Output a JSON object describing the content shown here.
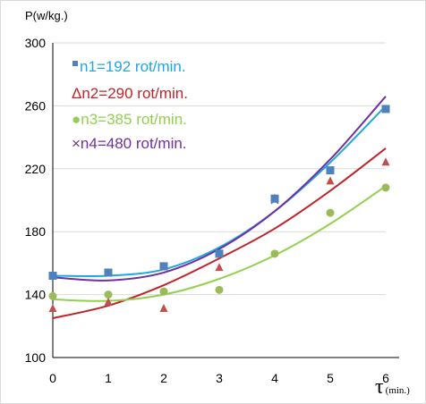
{
  "chart_data": {
    "type": "scatter",
    "ylabel": "P(w/kg.)",
    "xlabel_main": "τ",
    "xlabel_sub": "(min.)",
    "xlim": [
      0,
      6
    ],
    "ylim": [
      100,
      300
    ],
    "xticks": [
      0,
      1,
      2,
      3,
      4,
      5,
      6
    ],
    "yticks": [
      100,
      140,
      180,
      220,
      260,
      300
    ],
    "grid": true,
    "legend_position": "top-left",
    "series": [
      {
        "name": "n1=192 rot/min.",
        "marker": "■",
        "marker_shape": "square",
        "color": "#4f81bd",
        "line_color": "#1ea7e1",
        "x": [
          0,
          1,
          2,
          3,
          4,
          5,
          6
        ],
        "y": [
          152,
          154,
          158,
          166,
          201,
          219,
          258
        ],
        "trend": [
          152,
          152,
          156,
          170,
          193,
          224,
          260
        ]
      },
      {
        "name": "Δn2=290 rot/min.",
        "marker": "Δ",
        "marker_shape": "triangle",
        "color": "#c0504d",
        "line_color": "#c0242a",
        "x": [
          0,
          1,
          2,
          3,
          4,
          5,
          6
        ],
        "y": [
          131,
          135,
          131,
          157,
          201,
          212,
          224
        ],
        "trend": [
          125,
          133,
          146,
          163,
          182,
          206,
          233
        ]
      },
      {
        "name": "●n3=385 rot/min.",
        "marker": "●",
        "marker_shape": "circle",
        "color": "#9bbb59",
        "line_color": "#92d050",
        "x": [
          0,
          1,
          2,
          3,
          4,
          5,
          6
        ],
        "y": [
          139,
          140,
          142,
          143,
          166,
          192,
          208
        ],
        "trend": [
          137,
          136,
          140,
          150,
          165,
          185,
          209
        ]
      },
      {
        "name": "×n4=480 rot/min.",
        "marker": "×",
        "marker_shape": "x",
        "color": "#8064a2",
        "line_color": "#7030a0",
        "x": [
          0,
          1,
          2,
          3,
          4,
          5,
          6
        ],
        "y": [
          152,
          154,
          158,
          166,
          200,
          219,
          258
        ],
        "trend": [
          151,
          149,
          154,
          169,
          193,
          226,
          266
        ]
      }
    ]
  }
}
